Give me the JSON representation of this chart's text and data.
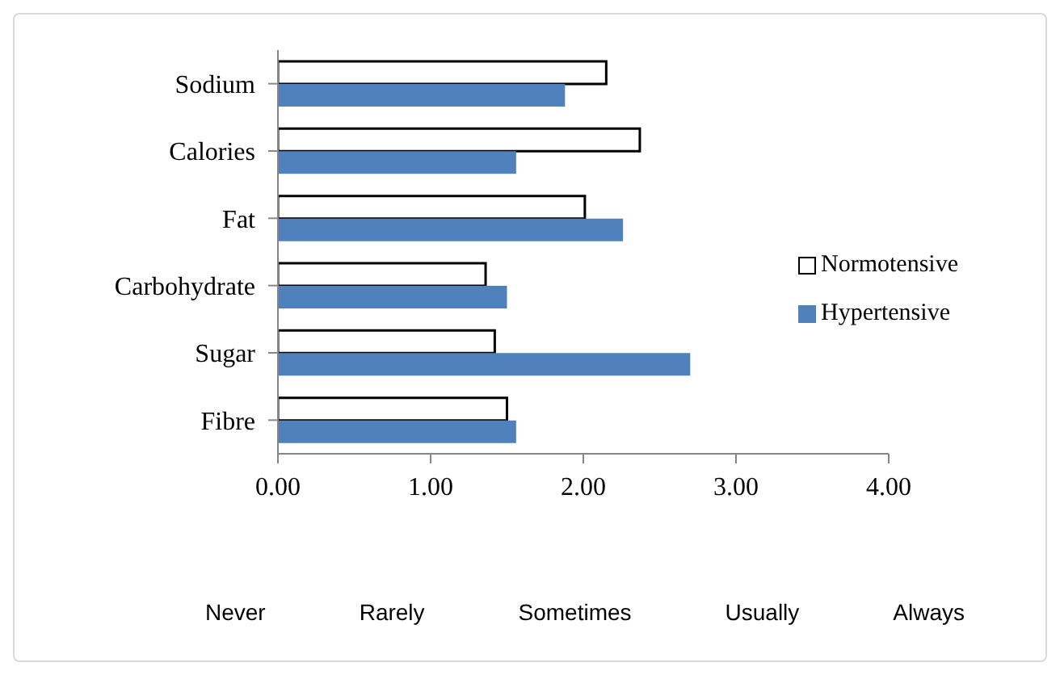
{
  "chart_data": {
    "type": "bar",
    "orientation": "horizontal",
    "categories": [
      "Sodium",
      "Calories",
      "Fat",
      "Carbohydrate",
      "Sugar",
      "Fibre"
    ],
    "series": [
      {
        "name": "Normotensive",
        "color": "#ffffff",
        "values": [
          2.15,
          2.37,
          2.01,
          1.36,
          1.42,
          1.5
        ]
      },
      {
        "name": "Hypertensive",
        "color": "#4f81bd",
        "values": [
          1.88,
          1.56,
          2.26,
          1.5,
          2.7,
          1.56
        ]
      }
    ],
    "xlim": [
      0,
      4
    ],
    "xticks": [
      {
        "value": 0,
        "label": "0.00"
      },
      {
        "value": 1,
        "label": "1.00"
      },
      {
        "value": 2,
        "label": "2.00"
      },
      {
        "value": 3,
        "label": "3.00"
      },
      {
        "value": 4,
        "label": "4.00"
      }
    ],
    "annotations": [
      "Never",
      "Rarely",
      "Sometimes",
      "Usually",
      "Always"
    ],
    "legend": "right",
    "grid": false
  }
}
